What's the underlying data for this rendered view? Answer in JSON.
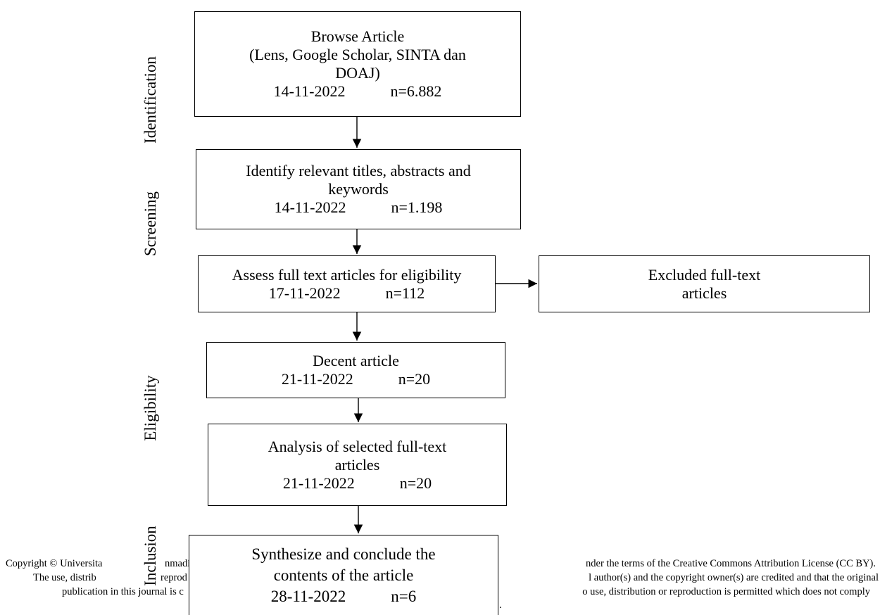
{
  "stages": {
    "identification": "Identification",
    "screening": "Screening",
    "eligibility": "Eligibility",
    "inclusion": "Inclusion"
  },
  "boxes": {
    "browse": {
      "title": "Browse Article",
      "sources_line1": "(Lens, Google Scholar,  SINTA dan",
      "sources_line2": "DOAJ)",
      "date": "14-11-2022",
      "count": "n=6.882"
    },
    "identify": {
      "title_line1": "Identify relevant titles, abstracts and",
      "title_line2": "keywords",
      "date": "14-11-2022",
      "count": "n=1.198"
    },
    "assess": {
      "title": "Assess full text articles for eligibility",
      "date": "17-11-2022",
      "count": "n=112"
    },
    "excluded": {
      "title_line1": "Excluded full-text",
      "title_line2": "articles"
    },
    "decent": {
      "title": "Decent article",
      "date": "21-11-2022",
      "count": "n=20"
    },
    "analysis": {
      "title_line1": "Analysis of selected full-text",
      "title_line2": "articles",
      "date": "21-11-2022",
      "count": "n=20"
    },
    "synthesize": {
      "title_line1": "Synthesize and conclude the",
      "title_line2": "contents of the article",
      "date": "28-11-2022",
      "count": "n=6"
    }
  },
  "footer": {
    "l1_left": "Copyright © Universita",
    "l1_mid": "nmadi",
    "l1_right": "nder the terms of the Creative Commons Attribution License (CC BY).",
    "l2_left": "The use, distrib",
    "l2_mid": "reprod",
    "l2_right": "l author(s) and the copyright owner(s) are credited and that the original",
    "l3_left": "publication in this journal is c",
    "l3_right": "o use, distribution or reproduction is permitted which does not comply",
    "l4_right": "."
  }
}
